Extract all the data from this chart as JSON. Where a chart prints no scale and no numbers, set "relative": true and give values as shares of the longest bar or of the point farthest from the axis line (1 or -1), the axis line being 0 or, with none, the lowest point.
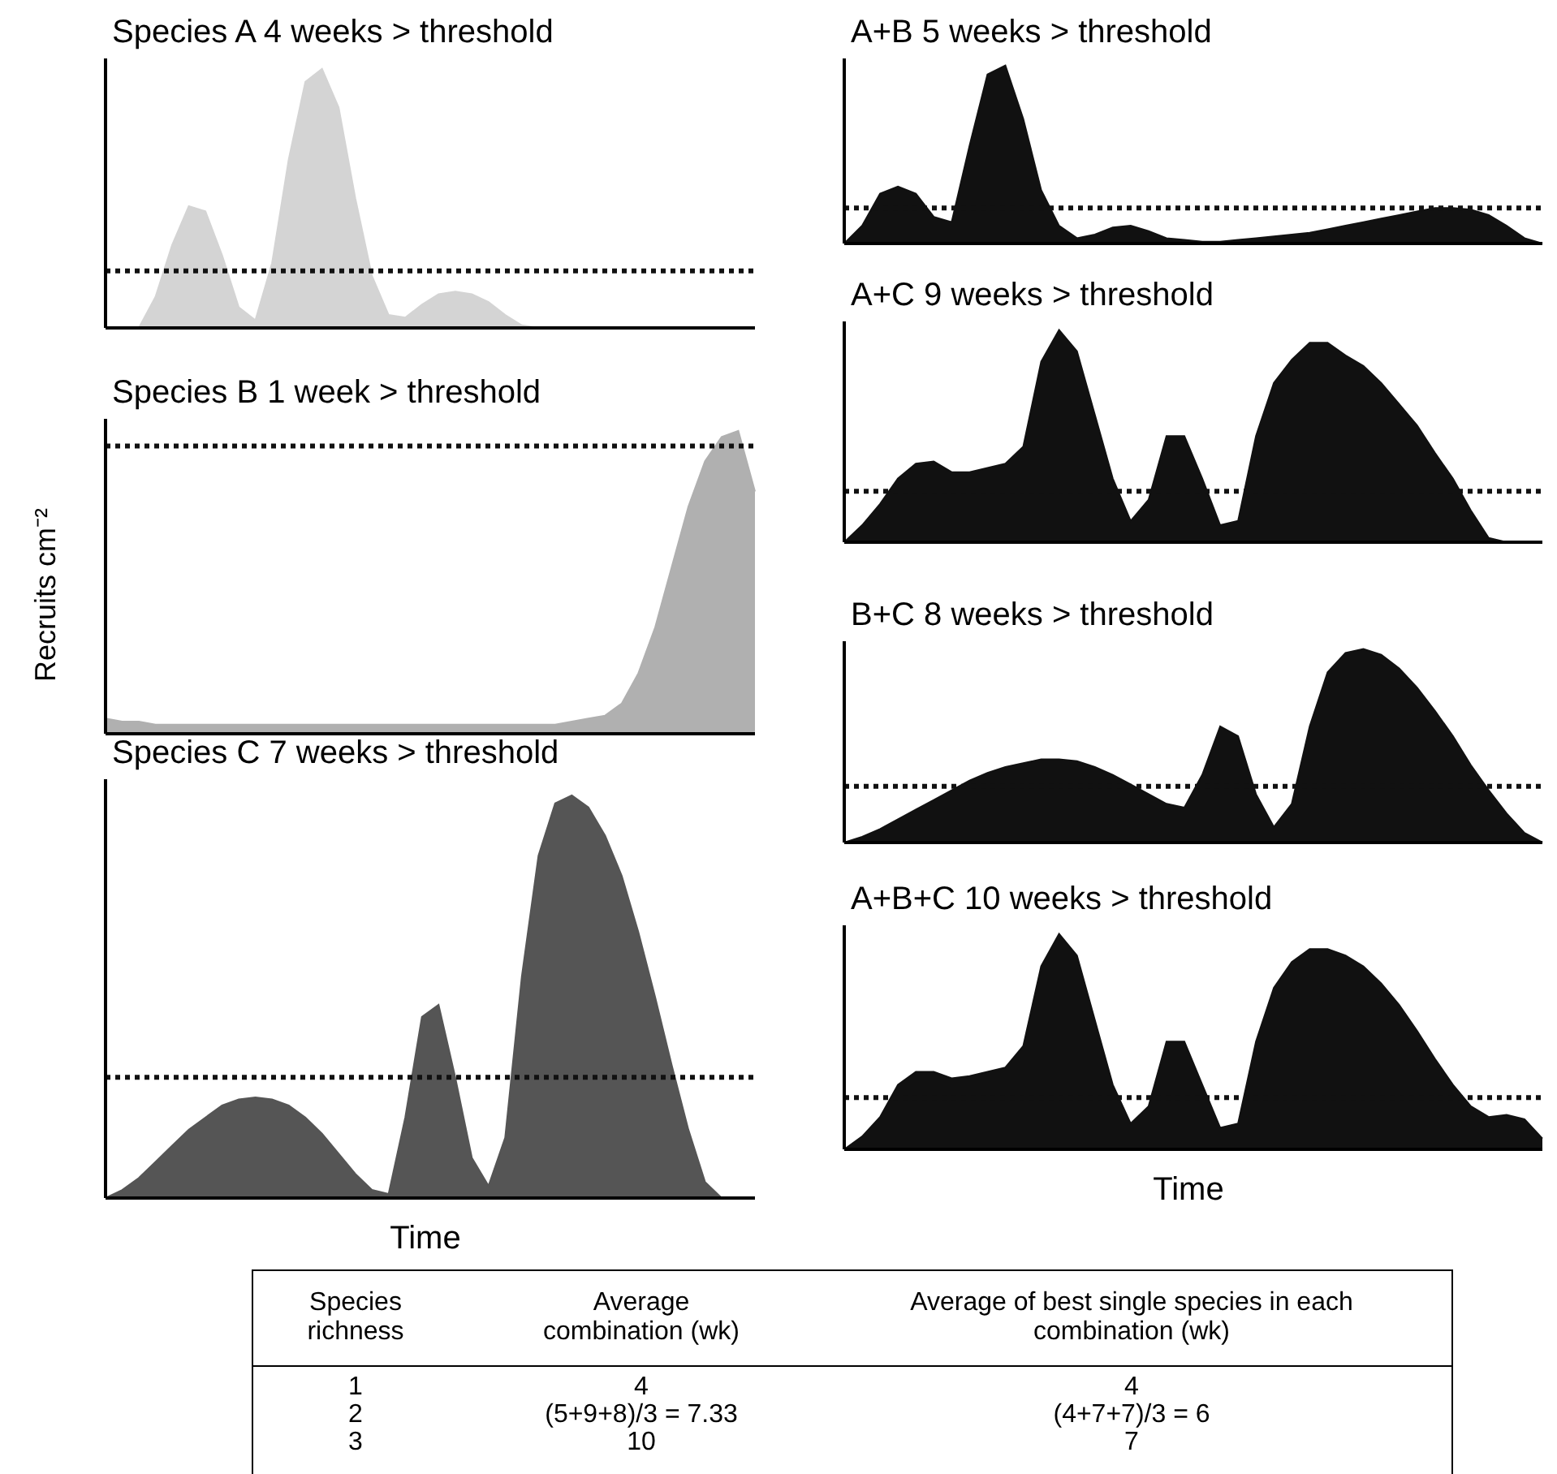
{
  "chart_data": [
    {
      "type": "area",
      "title": "Species A 4 weeks > threshold",
      "relative": true,
      "color": "#d4d4d4",
      "categories": [
        null,
        null,
        null,
        null,
        null,
        null,
        null,
        null,
        null,
        null,
        null,
        null,
        null,
        null,
        null,
        null,
        null,
        null,
        null,
        null,
        null,
        null,
        null,
        null,
        null,
        null,
        null,
        null,
        null,
        null,
        null,
        null,
        null,
        null,
        null,
        null,
        null,
        null,
        null,
        null
      ],
      "values": [
        0,
        0,
        0,
        0.12,
        0.32,
        0.47,
        0.45,
        0.28,
        0.08,
        0.03,
        0.25,
        0.65,
        0.95,
        1.0,
        0.85,
        0.5,
        0.2,
        0.05,
        0.04,
        0.09,
        0.13,
        0.14,
        0.13,
        0.1,
        0.05,
        0.01,
        0,
        0,
        0,
        0,
        0,
        0,
        0,
        0,
        0,
        0,
        0,
        0,
        0,
        0
      ],
      "ref_lines": [
        {
          "axis": "y",
          "value": 0.22,
          "color": "#111111",
          "line_style": "dotted"
        }
      ]
    },
    {
      "type": "area",
      "title": "Species B 1 week > threshold",
      "ylabel": "Recruits cm⁻²",
      "relative": true,
      "color": "#b0b0b0",
      "categories": [
        null,
        null,
        null,
        null,
        null,
        null,
        null,
        null,
        null,
        null,
        null,
        null,
        null,
        null,
        null,
        null,
        null,
        null,
        null,
        null,
        null,
        null,
        null,
        null,
        null,
        null,
        null,
        null,
        null,
        null,
        null,
        null,
        null,
        null,
        null,
        null,
        null,
        null,
        null,
        null
      ],
      "values": [
        0.05,
        0.04,
        0.04,
        0.03,
        0.03,
        0.03,
        0.03,
        0.03,
        0.03,
        0.03,
        0.03,
        0.03,
        0.03,
        0.03,
        0.03,
        0.03,
        0.03,
        0.03,
        0.03,
        0.03,
        0.03,
        0.03,
        0.03,
        0.03,
        0.03,
        0.03,
        0.03,
        0.03,
        0.04,
        0.05,
        0.06,
        0.1,
        0.2,
        0.35,
        0.55,
        0.75,
        0.9,
        0.98,
        1.0,
        0.8
      ],
      "ref_lines": [
        {
          "axis": "y",
          "value": 0.95,
          "color": "#111111",
          "line_style": "dotted"
        }
      ]
    },
    {
      "type": "area",
      "title": "Species C 7 weeks > threshold",
      "xlabel": "Time",
      "relative": true,
      "color": "#555555",
      "categories": [
        null,
        null,
        null,
        null,
        null,
        null,
        null,
        null,
        null,
        null,
        null,
        null,
        null,
        null,
        null,
        null,
        null,
        null,
        null,
        null,
        null,
        null,
        null,
        null,
        null,
        null,
        null,
        null,
        null,
        null,
        null,
        null,
        null,
        null,
        null,
        null,
        null,
        null,
        null,
        null
      ],
      "values": [
        0,
        0.02,
        0.05,
        0.09,
        0.13,
        0.17,
        0.2,
        0.23,
        0.245,
        0.25,
        0.245,
        0.23,
        0.2,
        0.16,
        0.11,
        0.06,
        0.02,
        0.01,
        0.2,
        0.45,
        0.48,
        0.3,
        0.1,
        0.03,
        0.15,
        0.55,
        0.85,
        0.98,
        1.0,
        0.97,
        0.9,
        0.8,
        0.66,
        0.5,
        0.33,
        0.17,
        0.04,
        0,
        0,
        0
      ],
      "ref_lines": [
        {
          "axis": "y",
          "value": 0.3,
          "color": "#111111",
          "line_style": "dotted"
        }
      ]
    },
    {
      "type": "area",
      "title": "A+B 5 weeks > threshold",
      "relative": true,
      "color": "#111111",
      "categories": [
        null,
        null,
        null,
        null,
        null,
        null,
        null,
        null,
        null,
        null,
        null,
        null,
        null,
        null,
        null,
        null,
        null,
        null,
        null,
        null,
        null,
        null,
        null,
        null,
        null,
        null,
        null,
        null,
        null,
        null,
        null,
        null,
        null,
        null,
        null,
        null,
        null,
        null,
        null,
        null
      ],
      "values": [
        0,
        0.1,
        0.28,
        0.32,
        0.28,
        0.15,
        0.12,
        0.55,
        0.95,
        1.0,
        0.7,
        0.3,
        0.1,
        0.03,
        0.05,
        0.09,
        0.1,
        0.07,
        0.03,
        0.02,
        0.01,
        0.01,
        0.02,
        0.03,
        0.04,
        0.05,
        0.06,
        0.08,
        0.1,
        0.12,
        0.14,
        0.16,
        0.18,
        0.2,
        0.2,
        0.19,
        0.16,
        0.1,
        0.03,
        0
      ],
      "ref_lines": [
        {
          "axis": "y",
          "value": 0.2,
          "color": "#111111",
          "line_style": "dotted"
        }
      ]
    },
    {
      "type": "area",
      "title": "A+C 9 weeks > threshold",
      "relative": true,
      "color": "#111111",
      "categories": [
        null,
        null,
        null,
        null,
        null,
        null,
        null,
        null,
        null,
        null,
        null,
        null,
        null,
        null,
        null,
        null,
        null,
        null,
        null,
        null,
        null,
        null,
        null,
        null,
        null,
        null,
        null,
        null,
        null,
        null,
        null,
        null,
        null,
        null,
        null,
        null,
        null,
        null,
        null,
        null
      ],
      "values": [
        0,
        0.08,
        0.18,
        0.3,
        0.37,
        0.38,
        0.33,
        0.33,
        0.35,
        0.37,
        0.45,
        0.85,
        1.0,
        0.9,
        0.6,
        0.3,
        0.1,
        0.2,
        0.5,
        0.5,
        0.3,
        0.08,
        0.1,
        0.5,
        0.75,
        0.86,
        0.94,
        0.94,
        0.88,
        0.83,
        0.75,
        0.65,
        0.55,
        0.42,
        0.3,
        0.15,
        0.02,
        0,
        0,
        0
      ],
      "ref_lines": [
        {
          "axis": "y",
          "value": 0.24,
          "color": "#111111",
          "line_style": "dotted"
        }
      ]
    },
    {
      "type": "area",
      "title": "B+C 8 weeks > threshold",
      "relative": true,
      "color": "#111111",
      "categories": [
        null,
        null,
        null,
        null,
        null,
        null,
        null,
        null,
        null,
        null,
        null,
        null,
        null,
        null,
        null,
        null,
        null,
        null,
        null,
        null,
        null,
        null,
        null,
        null,
        null,
        null,
        null,
        null,
        null,
        null,
        null,
        null,
        null,
        null,
        null,
        null,
        null,
        null,
        null,
        null
      ],
      "values": [
        0,
        0.03,
        0.07,
        0.12,
        0.17,
        0.22,
        0.27,
        0.32,
        0.36,
        0.39,
        0.41,
        0.43,
        0.43,
        0.42,
        0.39,
        0.35,
        0.3,
        0.25,
        0.2,
        0.18,
        0.35,
        0.6,
        0.55,
        0.25,
        0.08,
        0.2,
        0.6,
        0.88,
        0.98,
        1.0,
        0.97,
        0.9,
        0.8,
        0.68,
        0.55,
        0.4,
        0.27,
        0.15,
        0.05,
        0
      ],
      "ref_lines": [
        {
          "axis": "y",
          "value": 0.29,
          "color": "#111111",
          "line_style": "dotted"
        }
      ]
    },
    {
      "type": "area",
      "title": "A+B+C 10 weeks > threshold",
      "xlabel": "Time",
      "relative": true,
      "color": "#111111",
      "categories": [
        null,
        null,
        null,
        null,
        null,
        null,
        null,
        null,
        null,
        null,
        null,
        null,
        null,
        null,
        null,
        null,
        null,
        null,
        null,
        null,
        null,
        null,
        null,
        null,
        null,
        null,
        null,
        null,
        null,
        null,
        null,
        null,
        null,
        null,
        null,
        null,
        null,
        null,
        null,
        null
      ],
      "values": [
        0,
        0.06,
        0.15,
        0.3,
        0.36,
        0.36,
        0.33,
        0.34,
        0.36,
        0.38,
        0.48,
        0.85,
        1.0,
        0.9,
        0.6,
        0.3,
        0.12,
        0.2,
        0.5,
        0.5,
        0.3,
        0.1,
        0.12,
        0.5,
        0.75,
        0.87,
        0.93,
        0.93,
        0.9,
        0.85,
        0.77,
        0.67,
        0.55,
        0.42,
        0.3,
        0.2,
        0.15,
        0.16,
        0.14,
        0.05
      ],
      "ref_lines": [
        {
          "axis": "y",
          "value": 0.24,
          "color": "#111111",
          "line_style": "dotted"
        }
      ]
    },
    {
      "type": "other",
      "annotations": [
        "Species richness",
        "Average combination (wk)",
        "Average of best single species in each combination (wk)",
        "1",
        "4",
        "4",
        "2",
        "(5+9+8)/3 = 7.33",
        "(4+7+7)/3 = 6",
        "3",
        "10",
        "7"
      ]
    }
  ]
}
